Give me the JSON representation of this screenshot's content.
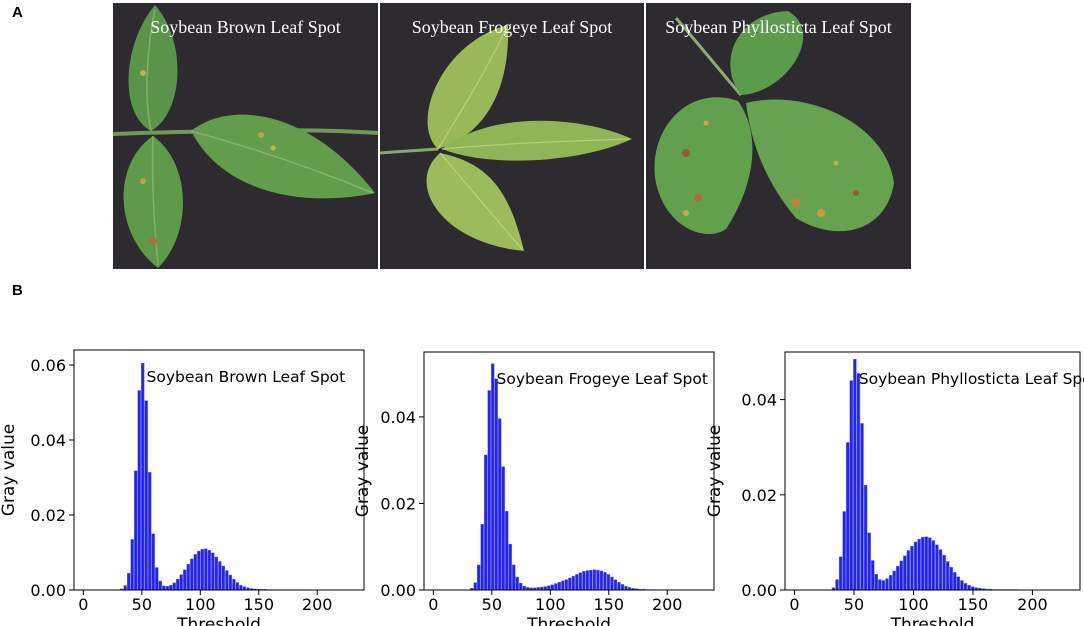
{
  "panels": {
    "a_label": "A",
    "b_label": "B"
  },
  "photos": [
    {
      "title": "Soybean Brown Leaf Spot"
    },
    {
      "title": "Soybean Frogeye Leaf Spot"
    },
    {
      "title": "Soybean Phyllosticta Leaf Spot"
    }
  ],
  "colors": {
    "bar": "#2323ee",
    "axis": "#000000",
    "photo_bg": "#2d2a30",
    "leaf": "#5f9a4a"
  },
  "chart_data": [
    {
      "type": "bar",
      "title": "Soybean Brown Leaf Spot",
      "xlabel": "Threshold",
      "ylabel": "Gray value",
      "xlim": [
        -8,
        240
      ],
      "ylim": [
        0,
        0.064
      ],
      "xticks": [
        "0",
        "50",
        "100",
        "150",
        "200"
      ],
      "xtick_values": [
        0,
        50,
        100,
        150,
        200
      ],
      "yticks": [
        "0.00",
        "0.02",
        "0.04",
        "0.06"
      ],
      "ytick_values": [
        0,
        0.02,
        0.04,
        0.06
      ],
      "bin_width": 3,
      "x": [
        33,
        36,
        39,
        42,
        45,
        48,
        51,
        54,
        57,
        60,
        63,
        66,
        69,
        72,
        75,
        78,
        81,
        84,
        87,
        90,
        93,
        96,
        99,
        102,
        105,
        108,
        111,
        114,
        117,
        120,
        123,
        126,
        129,
        132,
        135,
        138,
        141,
        144,
        147,
        150,
        153,
        156,
        159,
        162,
        165,
        168,
        171,
        174,
        177,
        180,
        183,
        186,
        189,
        192
      ],
      "values": [
        0.0003,
        0.0012,
        0.0045,
        0.0135,
        0.0318,
        0.0532,
        0.0605,
        0.0505,
        0.0314,
        0.015,
        0.006,
        0.0024,
        0.0011,
        0.001,
        0.0013,
        0.0019,
        0.0029,
        0.0041,
        0.0054,
        0.0069,
        0.0083,
        0.0095,
        0.0104,
        0.0109,
        0.011,
        0.0106,
        0.0099,
        0.0088,
        0.0076,
        0.0064,
        0.0052,
        0.004,
        0.0029,
        0.002,
        0.0013,
        0.0009,
        0.0006,
        0.0004,
        0.0003,
        0.0002,
        0.0002,
        0.0002,
        0.0001,
        0.0001,
        0.0001,
        0.0001,
        0.0001,
        0.0001,
        0.0001,
        0.0001,
        0.0001,
        0.0001,
        0.0001,
        0.0001
      ]
    },
    {
      "type": "bar",
      "title": "Soybean Frogeye Leaf Spot",
      "xlabel": "Threshold",
      "ylabel": "Gray value",
      "xlim": [
        -8,
        240
      ],
      "ylim": [
        0,
        0.055
      ],
      "xticks": [
        "0",
        "50",
        "100",
        "150",
        "200"
      ],
      "xtick_values": [
        0,
        50,
        100,
        150,
        200
      ],
      "yticks": [
        "0.00",
        "0.02",
        "0.04"
      ],
      "ytick_values": [
        0,
        0.02,
        0.04
      ],
      "bin_width": 3,
      "x": [
        33,
        36,
        39,
        42,
        45,
        48,
        51,
        54,
        57,
        60,
        63,
        66,
        69,
        72,
        75,
        78,
        81,
        84,
        87,
        90,
        93,
        96,
        99,
        102,
        105,
        108,
        111,
        114,
        117,
        120,
        123,
        126,
        129,
        132,
        135,
        138,
        141,
        144,
        147,
        150,
        153,
        156,
        159,
        162,
        165,
        168,
        171,
        174,
        177,
        180,
        183,
        186,
        189
      ],
      "values": [
        0.0004,
        0.0017,
        0.0058,
        0.0152,
        0.0312,
        0.0461,
        0.0523,
        0.0488,
        0.0396,
        0.0285,
        0.0182,
        0.0106,
        0.0058,
        0.003,
        0.0016,
        0.0009,
        0.0006,
        0.0005,
        0.0005,
        0.0006,
        0.0007,
        0.0008,
        0.001,
        0.0012,
        0.0015,
        0.0018,
        0.0021,
        0.0024,
        0.0028,
        0.0032,
        0.0036,
        0.004,
        0.0043,
        0.0045,
        0.0046,
        0.0047,
        0.0046,
        0.0044,
        0.0041,
        0.0036,
        0.003,
        0.0024,
        0.0018,
        0.0013,
        0.0009,
        0.0006,
        0.0004,
        0.0003,
        0.0002,
        0.0002,
        0.0001,
        0.0001,
        0.0001
      ]
    },
    {
      "type": "bar",
      "title": "Soybean Phyllosticta Leaf Spot",
      "xlabel": "Threshold",
      "ylabel": "Gray value",
      "xlim": [
        -8,
        240
      ],
      "ylim": [
        0,
        0.05
      ],
      "xticks": [
        "0",
        "50",
        "100",
        "150",
        "200"
      ],
      "xtick_values": [
        0,
        50,
        100,
        150,
        200
      ],
      "yticks": [
        "0.00",
        "0.02",
        "0.04"
      ],
      "ytick_values": [
        0,
        0.02,
        0.04
      ],
      "bin_width": 3,
      "x": [
        33,
        36,
        39,
        42,
        45,
        48,
        51,
        54,
        57,
        60,
        63,
        66,
        69,
        72,
        75,
        78,
        81,
        84,
        87,
        90,
        93,
        96,
        99,
        102,
        105,
        108,
        111,
        114,
        117,
        120,
        123,
        126,
        129,
        132,
        135,
        138,
        141,
        144,
        147,
        150,
        153,
        156,
        159,
        162,
        165,
        168,
        171,
        174,
        177,
        180,
        183,
        186
      ],
      "values": [
        0.0005,
        0.0022,
        0.007,
        0.0165,
        0.031,
        0.044,
        0.0485,
        0.0455,
        0.035,
        0.022,
        0.012,
        0.0062,
        0.0033,
        0.0022,
        0.002,
        0.0024,
        0.0031,
        0.004,
        0.005,
        0.0061,
        0.0072,
        0.0083,
        0.0092,
        0.0101,
        0.0107,
        0.0111,
        0.0112,
        0.011,
        0.0104,
        0.0095,
        0.0085,
        0.0073,
        0.006,
        0.0048,
        0.0037,
        0.0028,
        0.002,
        0.0014,
        0.001,
        0.0007,
        0.0005,
        0.0004,
        0.0003,
        0.0002,
        0.0002,
        0.0001,
        0.0001,
        0.0001,
        0.0001,
        0.0001,
        0.0001,
        0.0001
      ]
    }
  ]
}
